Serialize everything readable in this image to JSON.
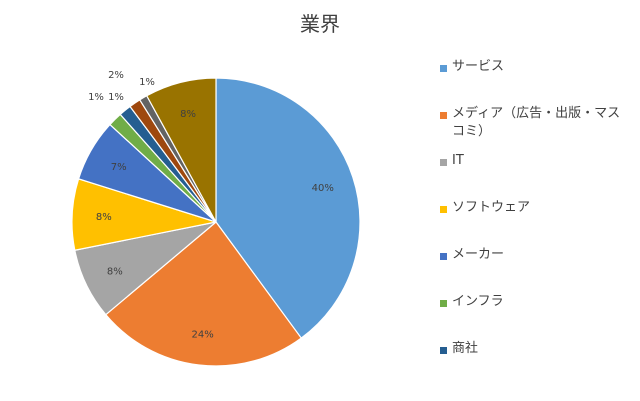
{
  "chart_data": {
    "type": "pie",
    "title": "業界",
    "slices": [
      {
        "label": "サービス",
        "value": 40,
        "text": "40%",
        "color": "#5b9bd5"
      },
      {
        "label": "メディア（広告・出版・マスコミ）",
        "value": 24,
        "text": "24%",
        "color": "#ed7d31"
      },
      {
        "label": "IT",
        "value": 8,
        "text": "8%",
        "color": "#a5a5a5"
      },
      {
        "label": "ソフトウェア",
        "value": 8,
        "text": "8%",
        "color": "#ffc000"
      },
      {
        "label": "メーカー",
        "value": 7,
        "text": "7%",
        "color": "#4472c4"
      },
      {
        "label": "インフラ",
        "value": 1.6,
        "text": "2%",
        "color": "#70ad47"
      },
      {
        "label": "商社",
        "value": 1.4,
        "text": "1%",
        "color": "#255e91"
      },
      {
        "label": "",
        "value": 1.3,
        "text": "1%",
        "color": "#9e480e"
      },
      {
        "label": "",
        "value": 0.9,
        "text": "1%",
        "color": "#636363"
      },
      {
        "label": "",
        "value": 8,
        "text": "8%",
        "color": "#997300"
      }
    ],
    "legend_position": "right"
  }
}
